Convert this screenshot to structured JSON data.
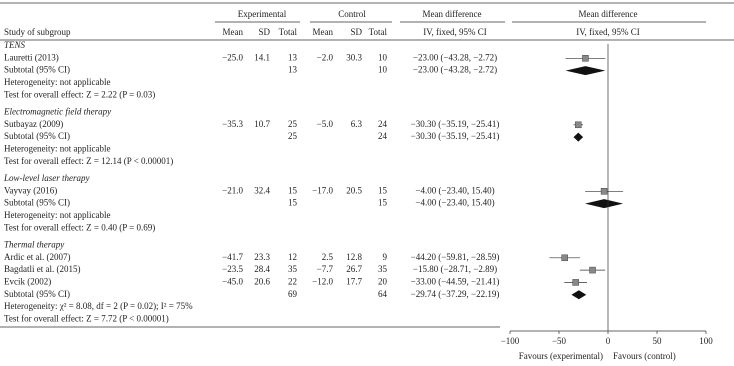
{
  "chart_data": {
    "type": "forest",
    "group_headers": [
      "Experimental",
      "Control",
      "Mean difference",
      "Mean difference"
    ],
    "column_labels": [
      "Study of subgroup",
      "Mean",
      "SD",
      "Total",
      "Mean",
      "SD",
      "Total",
      "IV, fixed, 95% CI",
      "IV, fixed, 95% CI"
    ],
    "subgroups": [
      {
        "name": "TENS",
        "studies": [
          {
            "name": "Lauretti (2013)",
            "cells": [
              "−25.0",
              "14.1",
              "13",
              "−2.0",
              "30.3",
              "10"
            ],
            "md": -23.0,
            "lo": -43.28,
            "hi": -2.72,
            "ci_label": "−23.00 (−43.28, −2.72)"
          }
        ],
        "subtotal": {
          "name": "Subtotal (95% CI)",
          "exp_total": "13",
          "ctrl_total": "10",
          "md": -23.0,
          "lo": -43.28,
          "hi": -2.72,
          "ci_label": "−23.00 (−43.28, −2.72)"
        },
        "heterogeneity": "Heterogeneity: not applicable",
        "overall_test": "Test for overall effect: Z = 2.22 (P = 0.03)"
      },
      {
        "name": "Electromagnetic field therapy",
        "studies": [
          {
            "name": "Sutbayaz (2009)",
            "cells": [
              "−35.3",
              "10.7",
              "25",
              "−5.0",
              "6.3",
              "24"
            ],
            "md": -30.3,
            "lo": -35.19,
            "hi": -25.41,
            "ci_label": "−30.30 (−35.19, −25.41)"
          }
        ],
        "subtotal": {
          "name": "Subtotal (95% CI)",
          "exp_total": "25",
          "ctrl_total": "24",
          "md": -30.3,
          "lo": -35.19,
          "hi": -25.41,
          "ci_label": "−30.30 (−35.19, −25.41)"
        },
        "heterogeneity": "Heterogeneity: not applicable",
        "overall_test": "Test for overall effect: Z = 12.14 (P < 0.00001)"
      },
      {
        "name": "Low-level laser therapy",
        "studies": [
          {
            "name": "Vayvay (2016)",
            "cells": [
              "−21.0",
              "32.4",
              "15",
              "−17.0",
              "20.5",
              "15"
            ],
            "md": -4.0,
            "lo": -23.4,
            "hi": 15.4,
            "ci_label": "−4.00 (−23.40, 15.40)"
          }
        ],
        "subtotal": {
          "name": "Subtotal (95% CI)",
          "exp_total": "15",
          "ctrl_total": "15",
          "md": -4.0,
          "lo": -23.4,
          "hi": 15.4,
          "ci_label": "−4.00 (−23.40, 15.40)"
        },
        "heterogeneity": "Heterogeneity: not applicable",
        "overall_test": "Test for overall effect: Z = 0.40 (P = 0.69)"
      },
      {
        "name": "Thermal therapy",
        "studies": [
          {
            "name": "Ardic et al. (2007)",
            "cells": [
              "−41.7",
              "23.3",
              "12",
              "2.5",
              "12.8",
              "9"
            ],
            "md": -44.2,
            "lo": -59.81,
            "hi": -28.59,
            "ci_label": "−44.20 (−59.81, −28.59)"
          },
          {
            "name": "Bagdatli et al. (2015)",
            "cells": [
              "−23.5",
              "28.4",
              "35",
              "−7.7",
              "26.7",
              "35"
            ],
            "md": -15.8,
            "lo": -28.71,
            "hi": -2.89,
            "ci_label": "−15.80 (−28.71, −2.89)"
          },
          {
            "name": "Evcik (2002)",
            "cells": [
              "−45.0",
              "20.6",
              "22",
              "−12.0",
              "17.7",
              "20"
            ],
            "md": -33.0,
            "lo": -44.59,
            "hi": -21.41,
            "ci_label": "−33.00 (−44.59, −21.41)"
          }
        ],
        "subtotal": {
          "name": "Subtotal (95% CI)",
          "exp_total": "69",
          "ctrl_total": "64",
          "md": -29.74,
          "lo": -37.29,
          "hi": -22.19,
          "ci_label": "−29.74 (−37.29, −22.19)"
        },
        "heterogeneity": "Heterogeneity: χ² = 8.08, df = 2 (P = 0.02); I² = 75%",
        "overall_test": "Test for overall effect: Z = 7.72 (P < 0.00001)"
      }
    ],
    "xlim": [
      -100,
      100
    ],
    "xticks": [
      {
        "value": -100,
        "label": "−100"
      },
      {
        "value": -50,
        "label": "−50"
      },
      0,
      50,
      100
    ],
    "favours_left": "Favours (experimental)",
    "favours_right": "Favours (control)",
    "study_color": "#888888",
    "diamond_color": "#111111"
  }
}
